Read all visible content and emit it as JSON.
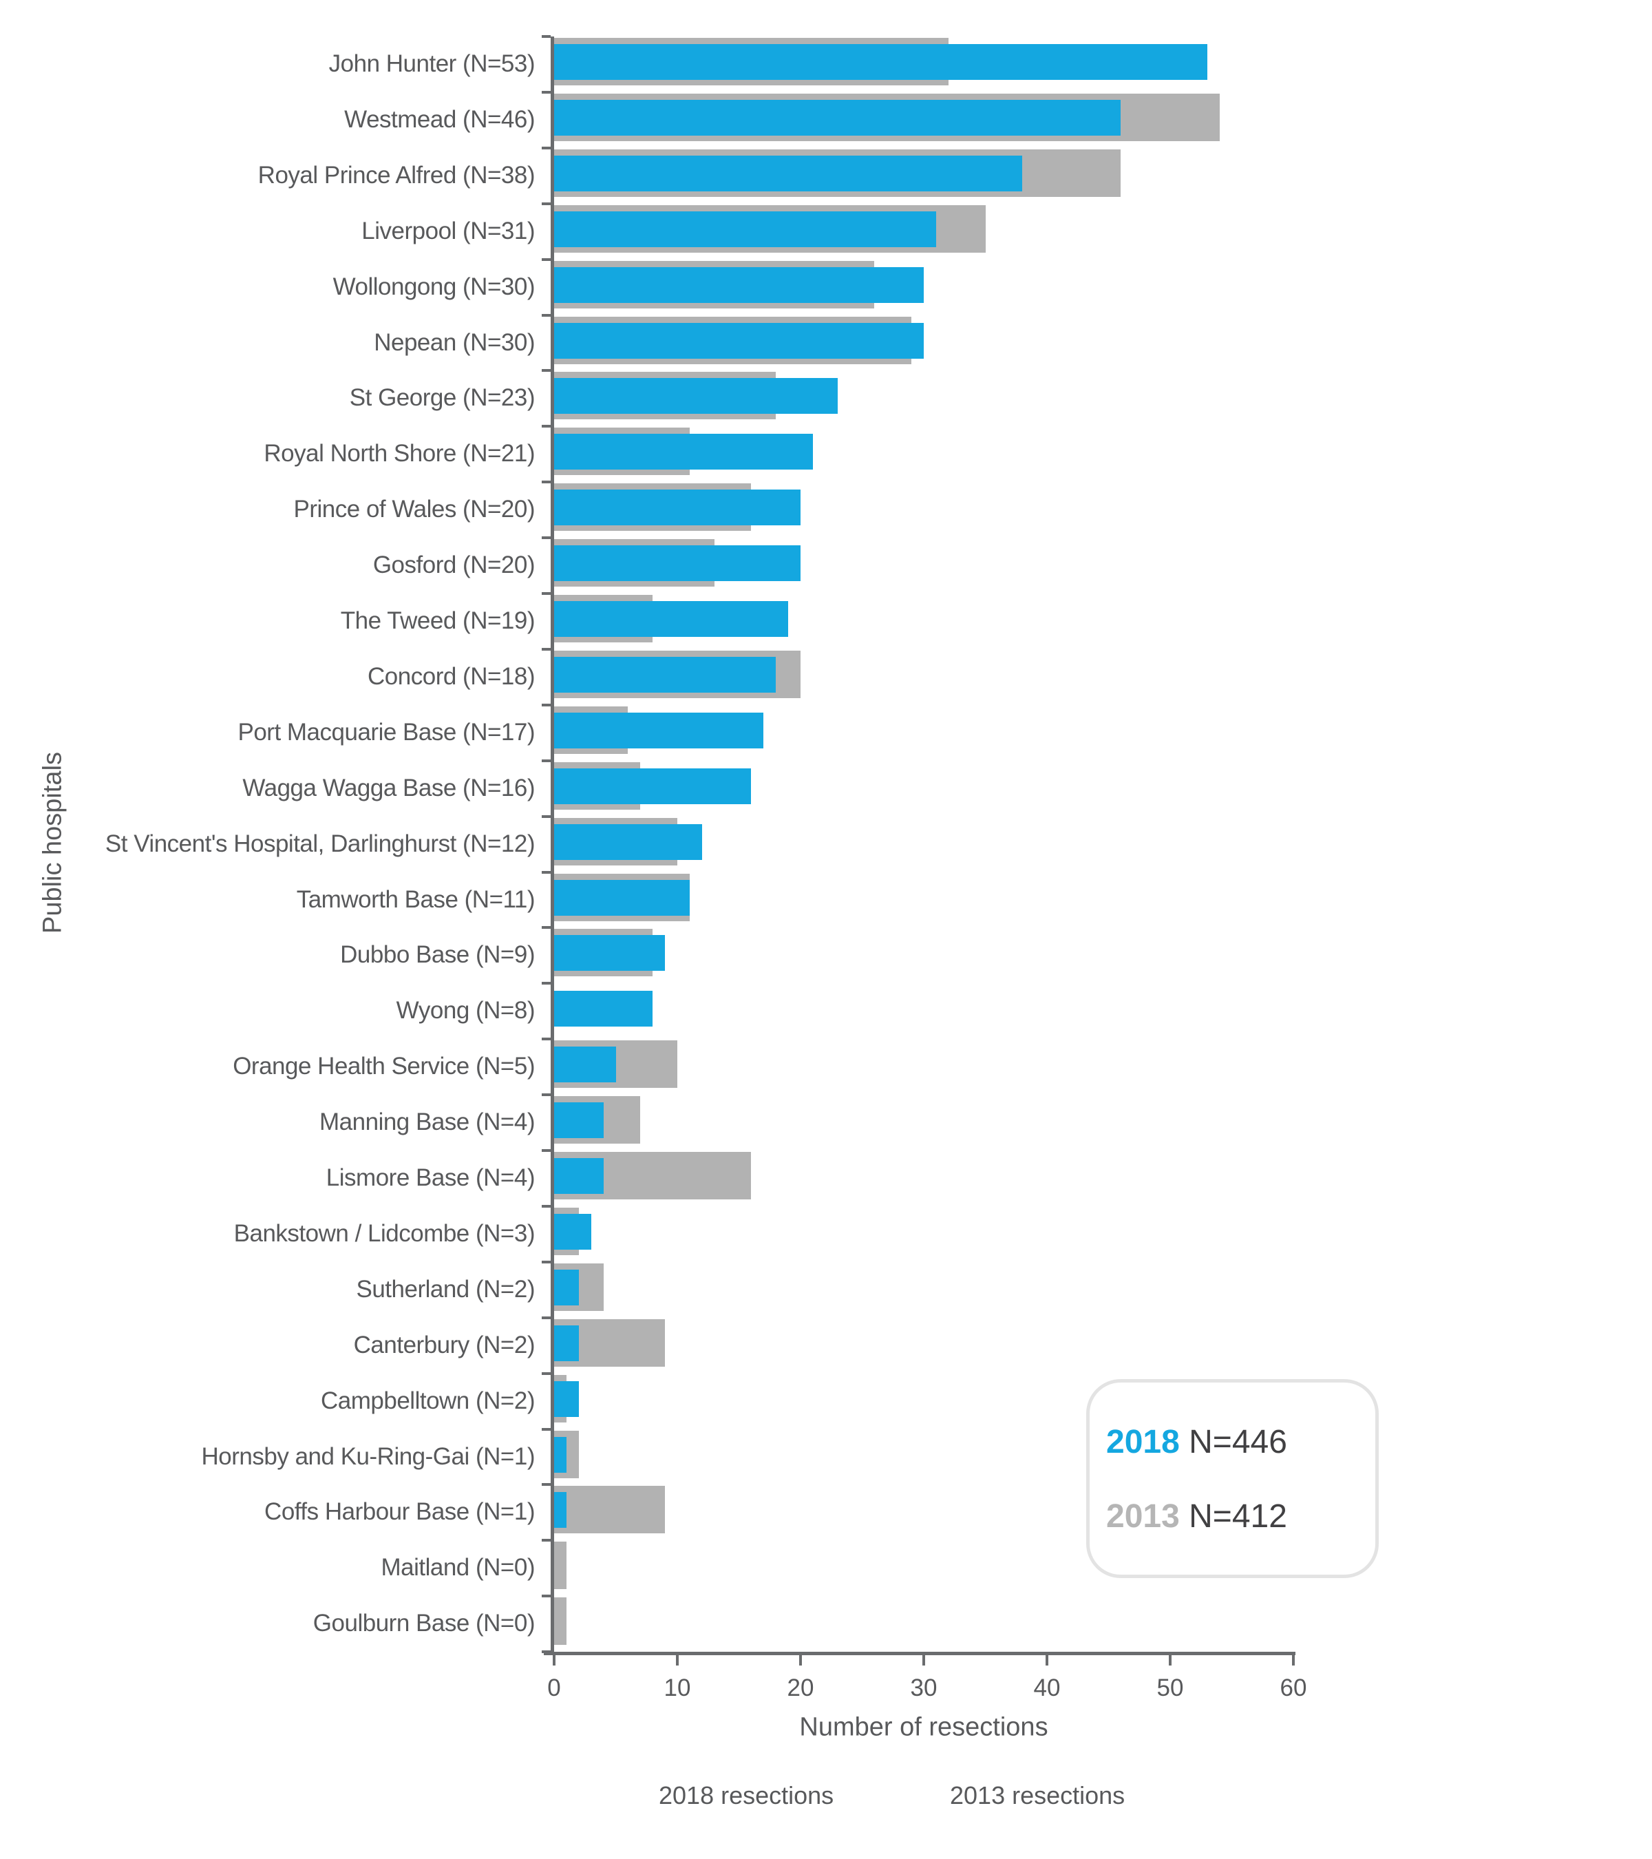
{
  "chart_data": {
    "type": "bar",
    "orientation": "horizontal",
    "title": "",
    "xlabel": "Number of resections",
    "ylabel": "Public hospitals",
    "xlim": [
      0,
      60
    ],
    "xticks": [
      0,
      10,
      20,
      30,
      40,
      50,
      60
    ],
    "grid": false,
    "legend_position": "bottom",
    "categories": [
      "John Hunter (N=53)",
      "Westmead (N=46)",
      "Royal Prince Alfred (N=38)",
      "Liverpool (N=31)",
      "Wollongong (N=30)",
      "Nepean (N=30)",
      "St George (N=23)",
      "Royal North Shore (N=21)",
      "Prince of Wales (N=20)",
      "Gosford (N=20)",
      "The Tweed (N=19)",
      "Concord (N=18)",
      "Port Macquarie Base (N=17)",
      "Wagga Wagga Base (N=16)",
      "St Vincent's Hospital, Darlinghurst (N=12)",
      "Tamworth Base (N=11)",
      "Dubbo Base (N=9)",
      "Wyong (N=8)",
      "Orange Health Service (N=5)",
      "Manning Base (N=4)",
      "Lismore Base (N=4)",
      "Bankstown / Lidcombe (N=3)",
      "Sutherland (N=2)",
      "Canterbury (N=2)",
      "Campbelltown (N=2)",
      "Hornsby and Ku-Ring-Gai (N=1)",
      "Coffs Harbour Base (N=1)",
      "Maitland (N=0)",
      "Goulburn Base (N=0)"
    ],
    "series": [
      {
        "name": "2018 resections",
        "color": "#14a7e0",
        "total": 446,
        "values": [
          53,
          46,
          38,
          31,
          30,
          30,
          23,
          21,
          20,
          20,
          19,
          18,
          17,
          16,
          12,
          11,
          9,
          8,
          5,
          4,
          4,
          3,
          2,
          2,
          2,
          1,
          1,
          0,
          0
        ]
      },
      {
        "name": "2013 resections",
        "color": "#b2b2b2",
        "total": 412,
        "values": [
          32,
          54,
          46,
          35,
          26,
          29,
          18,
          11,
          16,
          13,
          8,
          20,
          6,
          7,
          10,
          11,
          8,
          0,
          10,
          7,
          16,
          2,
          4,
          9,
          1,
          2,
          9,
          1,
          1
        ]
      }
    ]
  },
  "summary_box": {
    "line1_year": "2018",
    "line1_n": "N=446",
    "line2_year": "2013",
    "line2_n": "N=412"
  },
  "legend": {
    "items": [
      {
        "label": "2018 resections",
        "color": "#14a7e0"
      },
      {
        "label": "2013 resections",
        "color": "#b2b2b2"
      }
    ]
  },
  "colors": {
    "bar_2018": "#14a7e0",
    "bar_2013": "#b2b2b2",
    "axis": "#6a6c6e",
    "text": "#58595b",
    "summary_text": "#414042",
    "summary_year_2013": "#b5b5b5",
    "box_border": "#e3e3e3",
    "background": "#ffffff"
  }
}
